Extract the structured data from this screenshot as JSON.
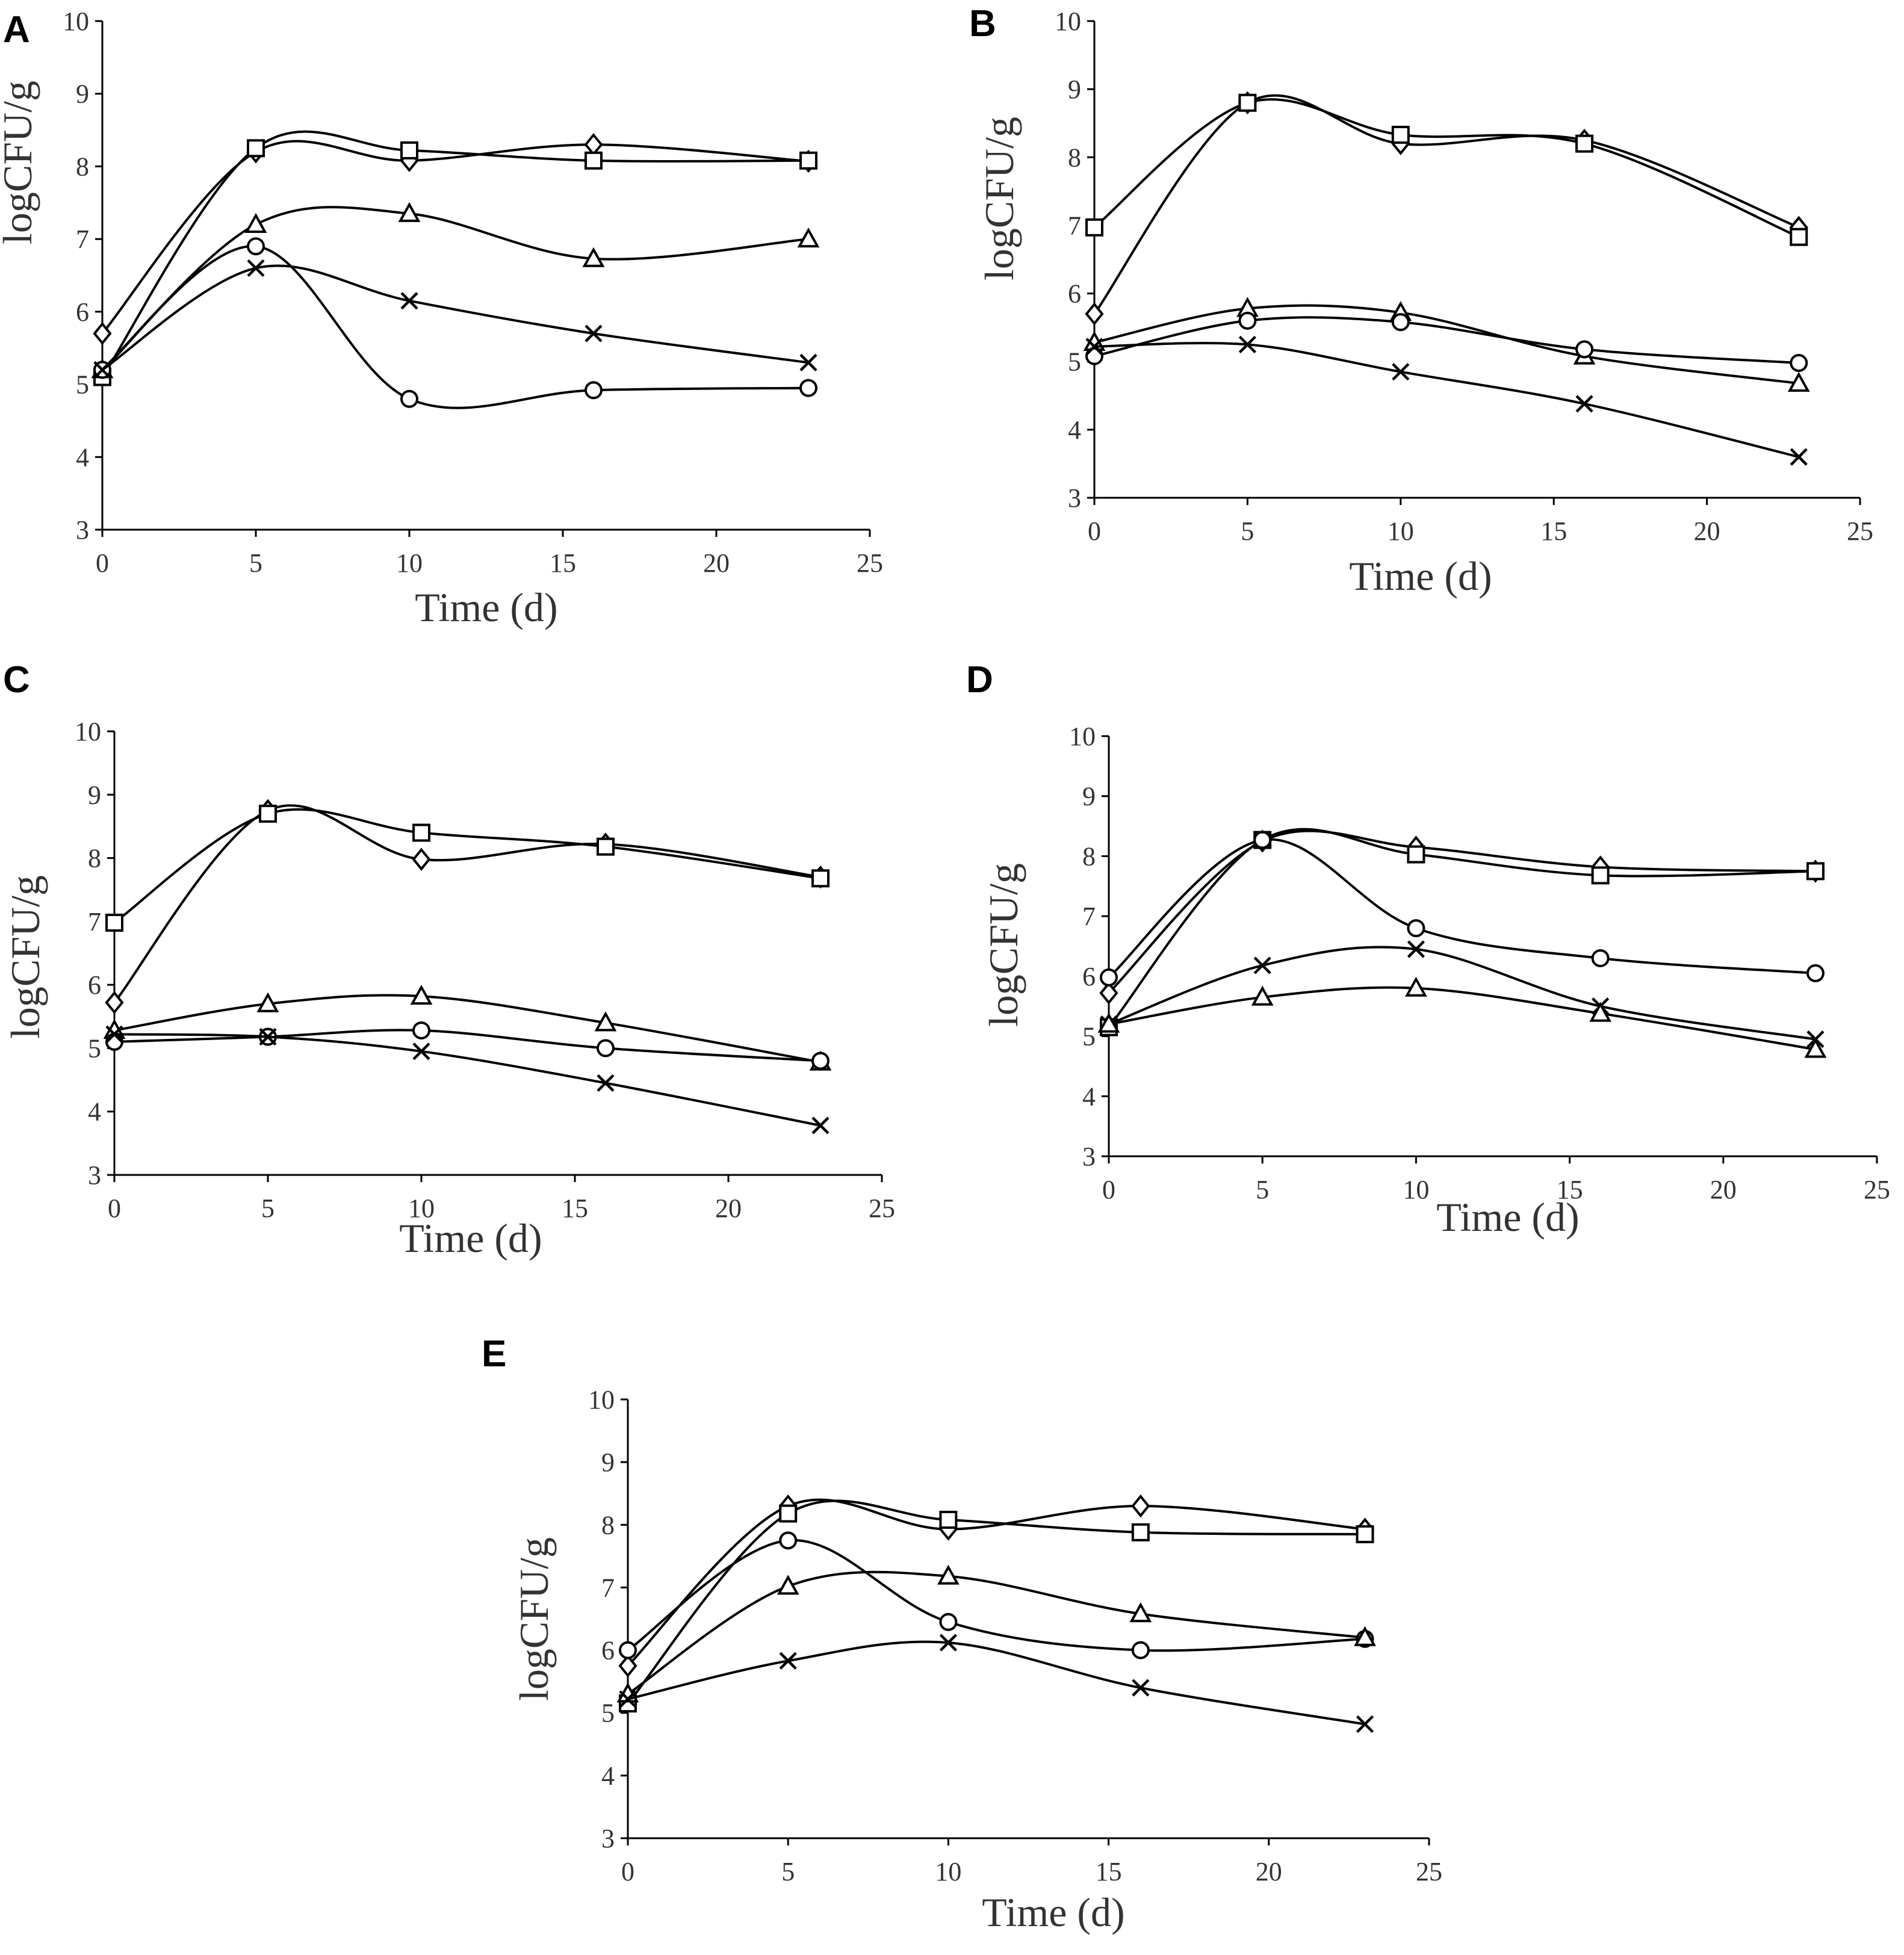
{
  "chart_data": [
    {
      "type": "line",
      "panel": "A",
      "xlabel": "Time (d)",
      "ylabel": "logCFU/g",
      "xlim": [
        0,
        25
      ],
      "ylim": [
        3,
        10
      ],
      "xticks": [
        "0",
        "5",
        "10",
        "15",
        "20",
        "25"
      ],
      "yticks": [
        "3",
        "4",
        "5",
        "6",
        "7",
        "8",
        "9",
        "10"
      ],
      "x": [
        0,
        5,
        10,
        16,
        23
      ],
      "series": [
        {
          "name": "diamond",
          "marker": "diamond",
          "values": [
            5.7,
            8.2,
            8.08,
            8.3,
            8.07
          ]
        },
        {
          "name": "square",
          "marker": "square",
          "values": [
            5.1,
            8.25,
            8.22,
            8.08,
            8.08
          ]
        },
        {
          "name": "triangle",
          "marker": "triangle",
          "values": [
            5.2,
            7.2,
            7.35,
            6.73,
            7.0
          ]
        },
        {
          "name": "circle",
          "marker": "circle",
          "values": [
            5.2,
            6.9,
            4.8,
            4.92,
            4.95
          ]
        },
        {
          "name": "cross",
          "marker": "cross",
          "values": [
            5.2,
            6.6,
            6.15,
            5.7,
            5.3
          ]
        }
      ]
    },
    {
      "type": "line",
      "panel": "B",
      "xlabel": "Time (d)",
      "ylabel": "logCFU/g",
      "xlim": [
        0,
        25
      ],
      "ylim": [
        3,
        10
      ],
      "xticks": [
        "0",
        "5",
        "10",
        "15",
        "20",
        "25"
      ],
      "yticks": [
        "3",
        "4",
        "5",
        "6",
        "7",
        "8",
        "9",
        "10"
      ],
      "x": [
        0,
        5,
        10,
        16,
        23
      ],
      "series": [
        {
          "name": "diamond",
          "marker": "diamond",
          "values": [
            5.7,
            8.8,
            8.2,
            8.25,
            6.97
          ]
        },
        {
          "name": "square",
          "marker": "square",
          "values": [
            6.97,
            8.8,
            8.33,
            8.2,
            6.83
          ]
        },
        {
          "name": "triangle",
          "marker": "triangle",
          "values": [
            5.28,
            5.78,
            5.72,
            5.08,
            4.68
          ]
        },
        {
          "name": "circle",
          "marker": "circle",
          "values": [
            5.08,
            5.6,
            5.58,
            5.18,
            4.98
          ]
        },
        {
          "name": "cross",
          "marker": "cross",
          "values": [
            5.22,
            5.25,
            4.85,
            4.38,
            3.6
          ]
        }
      ]
    },
    {
      "type": "line",
      "panel": "C",
      "xlabel": "Time (d)",
      "ylabel": "logCFU/g",
      "xlim": [
        0,
        25
      ],
      "ylim": [
        3,
        10
      ],
      "xticks": [
        "0",
        "5",
        "10",
        "15",
        "20",
        "25"
      ],
      "yticks": [
        "3",
        "4",
        "5",
        "6",
        "7",
        "8",
        "9",
        "10"
      ],
      "x": [
        0,
        5,
        10,
        16,
        23
      ],
      "series": [
        {
          "name": "diamond",
          "marker": "diamond",
          "values": [
            5.72,
            8.75,
            7.98,
            8.22,
            7.7
          ]
        },
        {
          "name": "square",
          "marker": "square",
          "values": [
            6.98,
            8.7,
            8.4,
            8.18,
            7.68
          ]
        },
        {
          "name": "triangle",
          "marker": "triangle",
          "values": [
            5.28,
            5.7,
            5.82,
            5.4,
            4.78
          ]
        },
        {
          "name": "circle",
          "marker": "circle",
          "values": [
            5.1,
            5.18,
            5.28,
            5.0,
            4.8
          ]
        },
        {
          "name": "cross",
          "marker": "cross",
          "values": [
            5.22,
            5.18,
            4.95,
            4.45,
            3.78
          ]
        }
      ]
    },
    {
      "type": "line",
      "panel": "D",
      "xlabel": "Time (d)",
      "ylabel": "logCFU/g",
      "xlim": [
        0,
        25
      ],
      "ylim": [
        3,
        10
      ],
      "xticks": [
        "0",
        "5",
        "10",
        "15",
        "20",
        "25"
      ],
      "yticks": [
        "3",
        "4",
        "5",
        "6",
        "7",
        "8",
        "9",
        "10"
      ],
      "x": [
        0,
        5,
        10,
        16,
        23
      ],
      "series": [
        {
          "name": "diamond",
          "marker": "diamond",
          "values": [
            5.72,
            8.25,
            8.15,
            7.82,
            7.75
          ]
        },
        {
          "name": "square",
          "marker": "square",
          "values": [
            5.15,
            8.27,
            8.03,
            7.68,
            7.75
          ]
        },
        {
          "name": "circle",
          "marker": "circle",
          "values": [
            5.98,
            8.27,
            6.8,
            6.3,
            6.05
          ]
        },
        {
          "name": "cross",
          "marker": "cross",
          "values": [
            5.2,
            6.18,
            6.45,
            5.5,
            4.95
          ]
        },
        {
          "name": "triangle",
          "marker": "triangle",
          "values": [
            5.2,
            5.65,
            5.8,
            5.38,
            4.78
          ]
        }
      ]
    },
    {
      "type": "line",
      "panel": "E",
      "xlabel": "Time (d)",
      "ylabel": "logCFU/g",
      "xlim": [
        0,
        25
      ],
      "ylim": [
        3,
        10
      ],
      "xticks": [
        "0",
        "5",
        "10",
        "15",
        "20",
        "25"
      ],
      "yticks": [
        "3",
        "4",
        "5",
        "6",
        "7",
        "8",
        "9",
        "10"
      ],
      "x": [
        0,
        5,
        10,
        16,
        23
      ],
      "series": [
        {
          "name": "diamond",
          "marker": "diamond",
          "values": [
            5.75,
            8.3,
            7.93,
            8.3,
            7.93
          ]
        },
        {
          "name": "square",
          "marker": "square",
          "values": [
            5.15,
            8.18,
            8.08,
            7.88,
            7.85
          ]
        },
        {
          "name": "circle",
          "marker": "circle",
          "values": [
            6.0,
            7.75,
            6.45,
            6.0,
            6.18
          ]
        },
        {
          "name": "triangle",
          "marker": "triangle",
          "values": [
            5.3,
            7.02,
            7.18,
            6.58,
            6.2
          ]
        },
        {
          "name": "cross",
          "marker": "cross",
          "values": [
            5.22,
            5.83,
            6.12,
            5.4,
            4.82
          ]
        }
      ]
    }
  ]
}
